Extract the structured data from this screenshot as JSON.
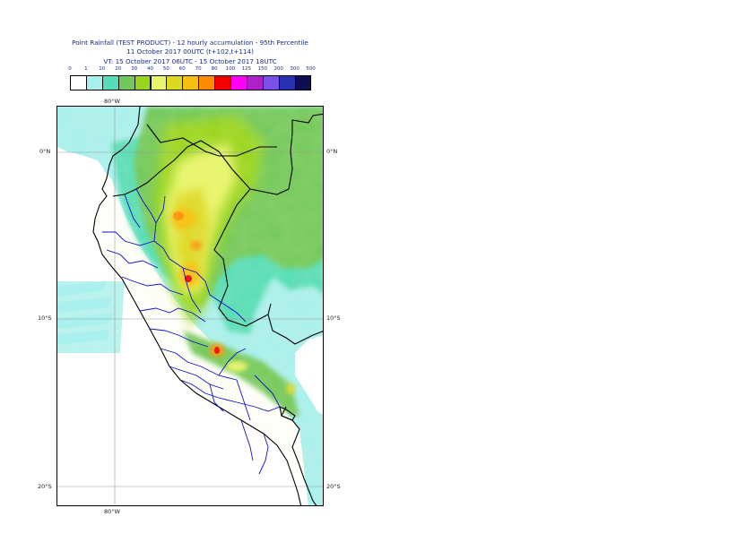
{
  "title": {
    "line1": "Point Rainfall (TEST PRODUCT) - 12 hourly accumulation - 95th Percentile",
    "line2": "11 October 2017 00UTC (t+102,t+114)",
    "line3": "VT: 15 October 2017 06UTC - 15 October 2017 18UTC"
  },
  "legend": {
    "thresholds": [
      "0",
      "1",
      "10",
      "20",
      "30",
      "40",
      "50",
      "60",
      "70",
      "80",
      "100",
      "125",
      "150",
      "200",
      "300",
      "500"
    ],
    "colors": [
      "#ffffff",
      "#a8f0f0",
      "#55ddb8",
      "#72c85a",
      "#9ad51e",
      "#e8f56a",
      "#ddd820",
      "#f6c010",
      "#ff8c00",
      "#f50000",
      "#ff00ff",
      "#b020c8",
      "#7a50e8",
      "#2830b0",
      "#0e0e55"
    ]
  },
  "axes": {
    "top_lon_label": "80°W",
    "bottom_lon_label": "80°W",
    "lat_labels": [
      "0°N",
      "10°S",
      "20°S"
    ]
  },
  "map": {
    "ocean_color": "#ffffff",
    "coast_color": "#000000",
    "admin_border_color": "#1010c8"
  }
}
